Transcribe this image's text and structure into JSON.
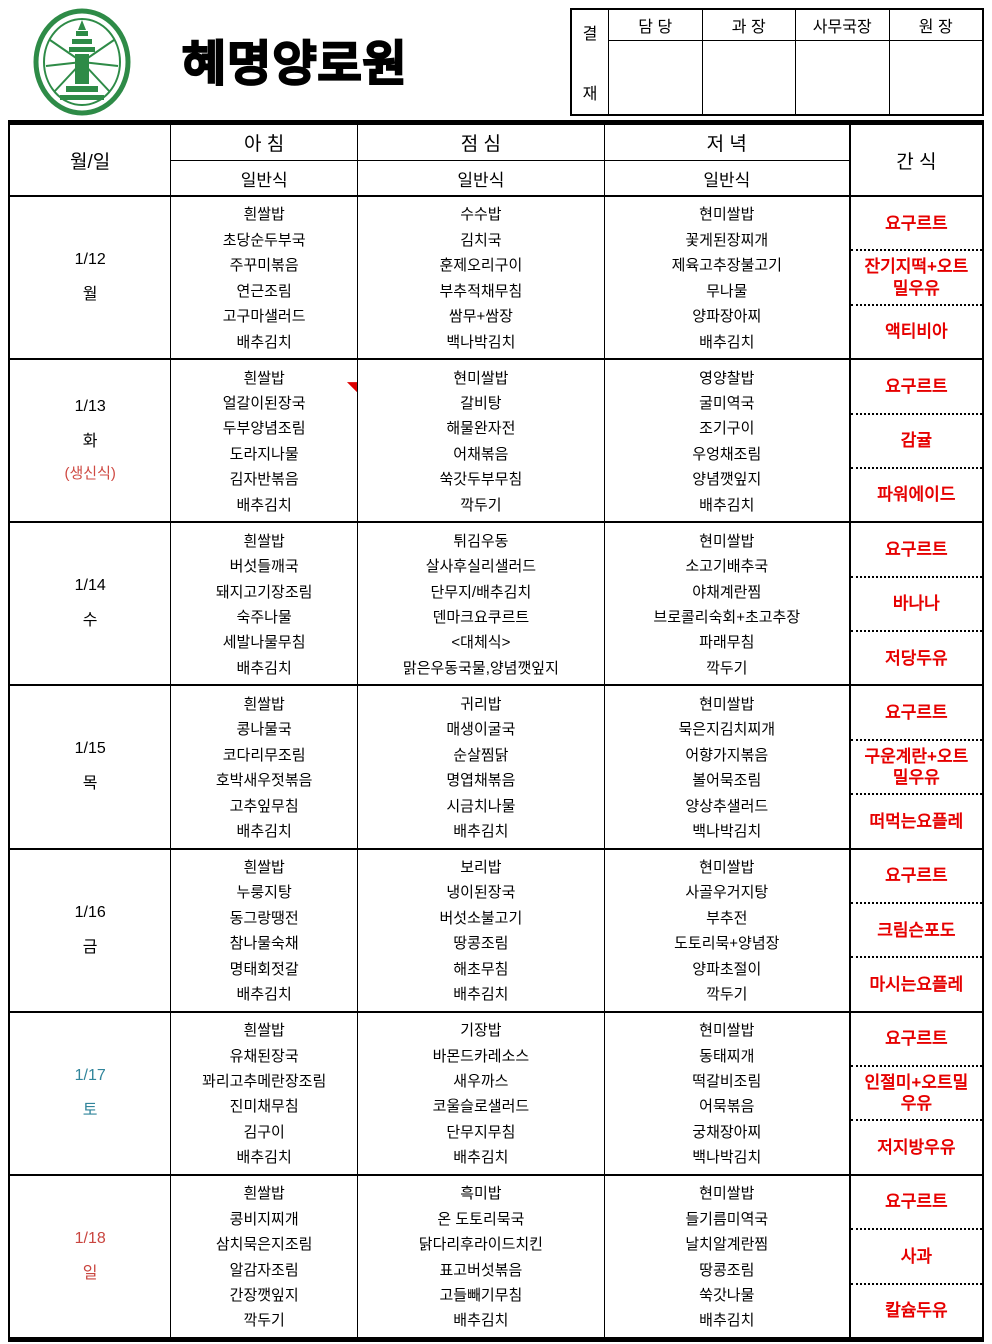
{
  "header": {
    "title": "혜명양로원",
    "logo": "green-temple-emblem",
    "approval": {
      "stamp_top": "결",
      "stamp_bottom": "재",
      "columns": [
        "담  당",
        "과  장",
        "사무국장",
        "원  장"
      ]
    }
  },
  "table": {
    "col_date": "월/일",
    "meals": [
      "아 침",
      "점 심",
      "저 녁"
    ],
    "meal_subtype": "일반식",
    "col_snack": "간 식",
    "days": [
      {
        "date": "1/12",
        "weekday": "월",
        "note": "",
        "color": "#000000",
        "breakfast": [
          "흰쌀밥",
          "초당순두부국",
          "주꾸미볶음",
          "연근조림",
          "고구마샐러드",
          "배추김치"
        ],
        "lunch": [
          "수수밥",
          "김치국",
          "훈제오리구이",
          "부추적채무침",
          "쌈무+쌈장",
          "백나박김치"
        ],
        "dinner": [
          "현미쌀밥",
          "꽃게된장찌개",
          "제육고추장불고기",
          "무나물",
          "양파장아찌",
          "배추김치"
        ],
        "snacks": [
          "요구르트",
          "잔기지떡+오트밀우유",
          "액티비아"
        ]
      },
      {
        "date": "1/13",
        "weekday": "화",
        "note": "(생신식)",
        "color": "#000000",
        "comment_marker": true,
        "breakfast": [
          "흰쌀밥",
          "얼갈이된장국",
          "두부양념조림",
          "도라지나물",
          "김자반볶음",
          "배추김치"
        ],
        "lunch": [
          "현미쌀밥",
          "갈비탕",
          "해물완자전",
          "어채볶음",
          "쑥갓두부무침",
          "깍두기"
        ],
        "dinner": [
          "영양찰밥",
          "굴미역국",
          "조기구이",
          "우엉채조림",
          "양념깻잎지",
          "배추김치"
        ],
        "snacks": [
          "요구르트",
          "감귤",
          "파워에이드"
        ]
      },
      {
        "date": "1/14",
        "weekday": "수",
        "note": "",
        "color": "#000000",
        "breakfast": [
          "흰쌀밥",
          "버섯들깨국",
          "돼지고기장조림",
          "숙주나물",
          "세발나물무침",
          "배추김치"
        ],
        "lunch": [
          "튀김우동",
          "살사후실리샐러드",
          "단무지/배추김치",
          "덴마크요쿠르트",
          "<대체식>",
          "맑은우동국물,양념깻잎지"
        ],
        "dinner": [
          "현미쌀밥",
          "소고기배추국",
          "야채계란찜",
          "브로콜리숙회+초고추장",
          "파래무침",
          "깍두기"
        ],
        "snacks": [
          "요구르트",
          "바나나",
          "저당두유"
        ]
      },
      {
        "date": "1/15",
        "weekday": "목",
        "note": "",
        "color": "#000000",
        "breakfast": [
          "흰쌀밥",
          "콩나물국",
          "코다리무조림",
          "호박새우젓볶음",
          "고추잎무침",
          "배추김치"
        ],
        "lunch": [
          "귀리밥",
          "매생이굴국",
          "순살찜닭",
          "명엽채볶음",
          "시금치나물",
          "배추김치"
        ],
        "dinner": [
          "현미쌀밥",
          "묵은지김치찌개",
          "어향가지볶음",
          "볼어묵조림",
          "양상추샐러드",
          "백나박김치"
        ],
        "snacks": [
          "요구르트",
          "구운계란+오트밀우유",
          "떠먹는요플레"
        ]
      },
      {
        "date": "1/16",
        "weekday": "금",
        "note": "",
        "color": "#000000",
        "breakfast": [
          "흰쌀밥",
          "누룽지탕",
          "동그랑땡전",
          "참나물숙채",
          "명태회젓갈",
          "배추김치"
        ],
        "lunch": [
          "보리밥",
          "냉이된장국",
          "버섯소불고기",
          "땅콩조림",
          "해초무침",
          "배추김치"
        ],
        "dinner": [
          "현미쌀밥",
          "사골우거지탕",
          "부추전",
          "도토리묵+양념장",
          "양파초절이",
          "깍두기"
        ],
        "snacks": [
          "요구르트",
          "크림슨포도",
          "마시는요플레"
        ]
      },
      {
        "date": "1/17",
        "weekday": "토",
        "note": "",
        "color": "#31859b",
        "breakfast": [
          "흰쌀밥",
          "유채된장국",
          "꽈리고추메란장조림",
          "진미채무침",
          "김구이",
          "배추김치"
        ],
        "lunch": [
          "기장밥",
          "바몬드카레소스",
          "새우까스",
          "코울슬로샐러드",
          "단무지무침",
          "배추김치"
        ],
        "dinner": [
          "현미쌀밥",
          "동태찌개",
          "떡갈비조림",
          "어묵볶음",
          "궁채장아찌",
          "백나박김치"
        ],
        "snacks": [
          "요구르트",
          "인절미+오트밀우유",
          "저지방우유"
        ]
      },
      {
        "date": "1/18",
        "weekday": "일",
        "note": "",
        "color": "#c9453f",
        "breakfast": [
          "흰쌀밥",
          "콩비지찌개",
          "삼치묵은지조림",
          "알감자조림",
          "간장깻잎지",
          "깍두기"
        ],
        "lunch": [
          "흑미밥",
          "온 도토리묵국",
          "닭다리후라이드치킨",
          "표고버섯볶음",
          "고들빼기무침",
          "배추김치"
        ],
        "dinner": [
          "현미쌀밥",
          "들기름미역국",
          "날치알계란찜",
          "땅콩조림",
          "쑥갓나물",
          "배추김치"
        ],
        "snacks": [
          "요구르트",
          "사과",
          "칼슘두유"
        ]
      }
    ]
  },
  "colors": {
    "snack_text": "#e60000",
    "note_red": "#cf4a43",
    "marker_red": "#dd0000",
    "logo_green": "#2e8b47",
    "border_black": "#000000"
  }
}
